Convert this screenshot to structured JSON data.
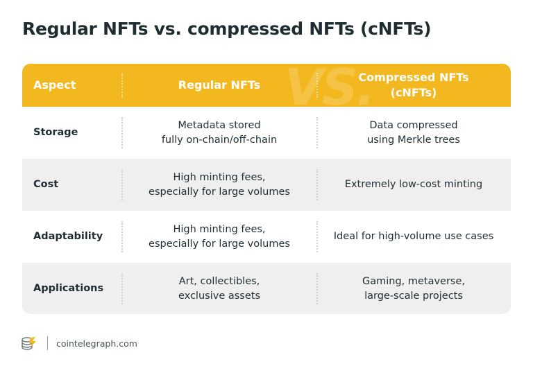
{
  "title": "Regular NFTs vs. compressed NFTs (cNFTs)",
  "header": {
    "watermark": "VS.",
    "col1": "Aspect",
    "col2": "Regular NFTs",
    "col3_line1": "Compressed NFTs",
    "col3_line2": "(cNFTs)"
  },
  "rows": [
    {
      "aspect": "Storage",
      "regular": [
        "Metadata stored",
        "fully on-chain/off-chain"
      ],
      "compressed": [
        "Data compressed",
        "using Merkle trees"
      ]
    },
    {
      "aspect": "Cost",
      "regular": [
        "High minting fees,",
        "especially for large volumes"
      ],
      "compressed": [
        "Extremely low-cost minting"
      ]
    },
    {
      "aspect": "Adaptability",
      "regular": [
        "High minting fees,",
        "especially for large volumes"
      ],
      "compressed": [
        "Ideal for high-volume use cases"
      ]
    },
    {
      "aspect": "Applications",
      "regular": [
        "Art, collectibles,",
        "exclusive assets"
      ],
      "compressed": [
        "Gaming, metaverse,",
        "large-scale projects"
      ]
    }
  ],
  "footer": {
    "logo_icon": "cointelegraph-coin-icon",
    "source": "cointelegraph.com"
  },
  "colors": {
    "header_bg": "#f3b81f",
    "alt_row_bg": "#efefef",
    "title_text": "#1f2d33"
  }
}
